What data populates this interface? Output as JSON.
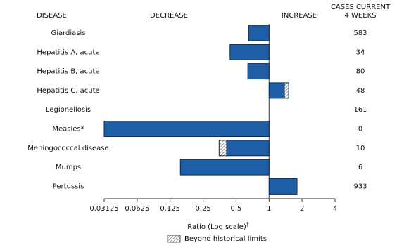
{
  "chart_data": {
    "type": "bar",
    "orientation": "horizontal",
    "headers": {
      "disease": "DISEASE",
      "decrease": "DECREASE",
      "increase": "INCREASE",
      "cases": [
        "CASES CURRENT",
        "4 WEEKS"
      ]
    },
    "categories": [
      "Giardiasis",
      "Hepatitis A, acute",
      "Hepatitis B, acute",
      "Hepatitis C, acute",
      "Legionellosis",
      "Measles*",
      "Meningococcal disease",
      "Mumps",
      "Pertussis"
    ],
    "values": [
      0.65,
      0.44,
      0.64,
      1.51,
      1,
      0.03125,
      0.35,
      0.155,
      1.8
    ],
    "beyond_limits": [
      null,
      null,
      null,
      1.38,
      null,
      null,
      0.41,
      null,
      null
    ],
    "cases": [
      583,
      34,
      80,
      48,
      161,
      0,
      10,
      6,
      933
    ],
    "color": "#1f5fa8",
    "log_scale": true,
    "reference_line": 1,
    "xlim": [
      0.03125,
      4
    ],
    "xticks": [
      0.03125,
      0.0625,
      0.125,
      0.25,
      0.5,
      1,
      2,
      4
    ],
    "xlabel": "Ratio (Log scale)",
    "xlabel_note": "†",
    "legend": "Beyond historical limits"
  }
}
